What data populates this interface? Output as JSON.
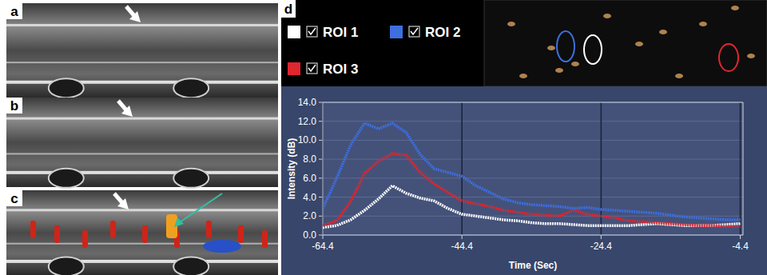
{
  "panel_labels": [
    "a",
    "b",
    "c",
    "d"
  ],
  "chart_data": {
    "type": "line",
    "x_label": "Time (Sec)",
    "y_label": "Intensity (dB)",
    "xlim": [
      -64.4,
      -4
    ],
    "xticks": [
      -64.4,
      -44.4,
      -24.4,
      -4.4
    ],
    "ylim": [
      0,
      14
    ],
    "yticks": [
      {
        "value": 0,
        "label": "0.0"
      },
      {
        "value": 2,
        "label": "2.0"
      },
      {
        "value": 4,
        "label": "4.0"
      },
      {
        "value": 6,
        "label": "6.0"
      },
      {
        "value": 8,
        "label": "8.0"
      },
      {
        "value": 10,
        "label": "10.0"
      },
      {
        "value": 12,
        "label": "12.0"
      },
      {
        "value": 14,
        "label": "14.0"
      }
    ],
    "grid": true,
    "legend": "top",
    "x": [
      -64.4,
      -62.4,
      -60.4,
      -58.4,
      -56.4,
      -54.4,
      -52.4,
      -50.4,
      -48.4,
      -46.4,
      -44.4,
      -42.4,
      -40.4,
      -38.4,
      -36.4,
      -34.4,
      -32.4,
      -30.4,
      -28.4,
      -26.4,
      -24.4,
      -22.4,
      -20.4,
      -18.4,
      -16.4,
      -14.4,
      -12.4,
      -10.4,
      -8.4,
      -6.4,
      -4.4
    ],
    "series": [
      {
        "name": "ROI 1",
        "color": "#ffffff",
        "values": [
          0.8,
          1.0,
          1.6,
          2.6,
          3.8,
          5.2,
          4.4,
          3.9,
          3.6,
          2.8,
          2.2,
          2.0,
          1.8,
          1.6,
          1.5,
          1.3,
          1.2,
          1.2,
          1.1,
          1.0,
          1.0,
          1.0,
          1.0,
          1.1,
          1.2,
          1.1,
          1.0,
          1.0,
          1.0,
          1.1,
          1.2
        ]
      },
      {
        "name": "ROI 2",
        "color": "#3d6fe0",
        "values": [
          2.8,
          6.0,
          9.5,
          11.8,
          11.2,
          11.8,
          10.8,
          8.5,
          7.0,
          6.6,
          6.2,
          5.2,
          4.5,
          3.8,
          3.4,
          3.2,
          3.1,
          3.0,
          2.8,
          2.9,
          2.7,
          2.6,
          2.5,
          2.4,
          2.3,
          2.1,
          1.9,
          1.8,
          1.7,
          1.6,
          1.6
        ]
      },
      {
        "name": "ROI 3",
        "color": "#e0262e",
        "values": [
          1.0,
          1.5,
          3.5,
          6.5,
          7.8,
          8.6,
          8.4,
          6.6,
          5.4,
          4.5,
          3.6,
          3.3,
          3.0,
          2.6,
          2.4,
          2.2,
          2.1,
          2.0,
          2.6,
          2.2,
          2.0,
          1.8,
          1.5,
          1.4,
          1.3,
          1.2,
          1.1,
          1.0,
          1.0,
          0.9,
          0.9
        ]
      }
    ]
  }
}
